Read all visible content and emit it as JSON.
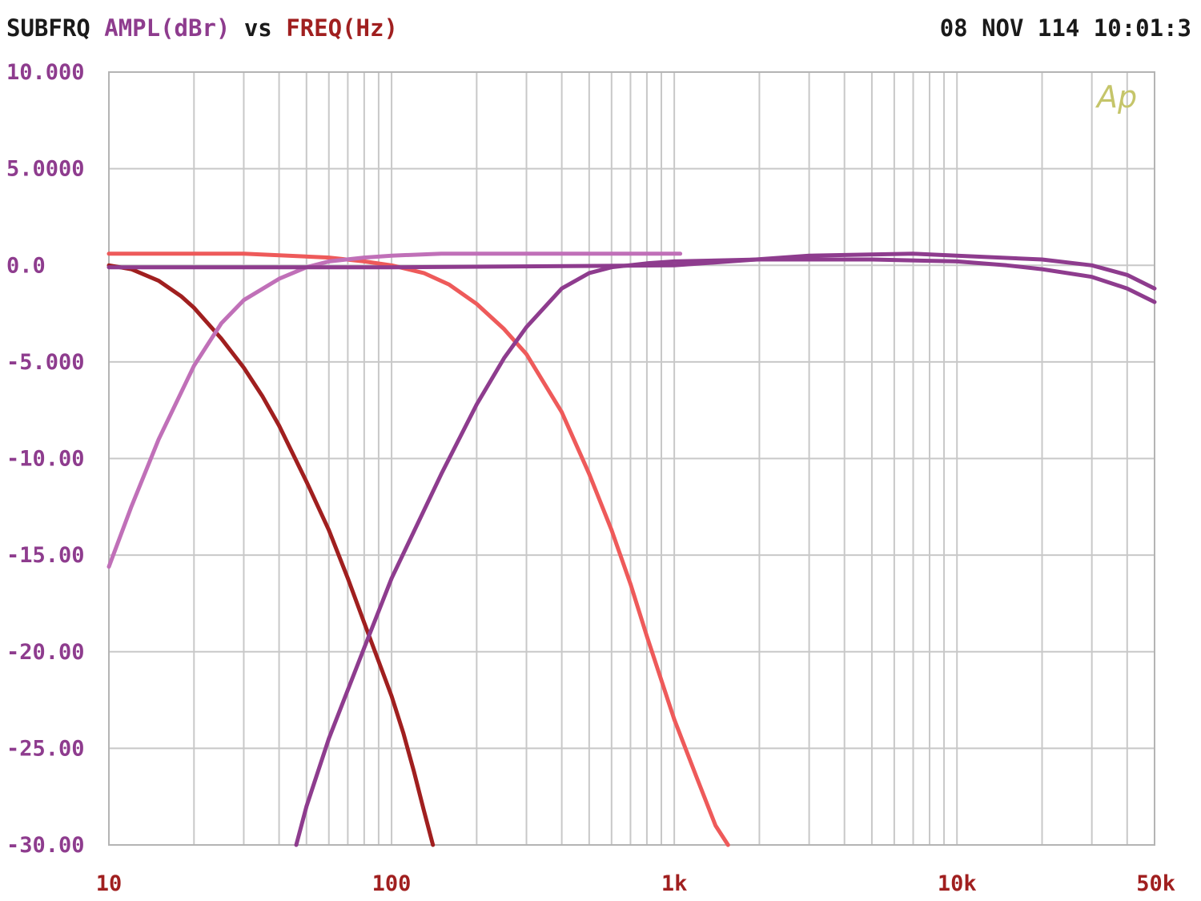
{
  "header": {
    "prefix": "SUBFRQ",
    "y_quantity": "AMPL(dBr)",
    "vs": "vs",
    "x_quantity": "FREQ(Hz)",
    "datetime": "08 NOV 114 10:01:3"
  },
  "logo_text": "Ap",
  "chart_data": {
    "type": "line",
    "title": "",
    "xlabel": "FREQ(Hz)",
    "ylabel": "AMPL(dBr)",
    "x_scale": "log",
    "xlim": [
      10,
      50000
    ],
    "ylim": [
      -30,
      10
    ],
    "grid": true,
    "y_ticks": [
      10,
      5,
      0,
      -5,
      -10,
      -15,
      -20,
      -25,
      -30
    ],
    "y_tick_labels": [
      "10.000",
      "5.0000",
      "0.0",
      "-5.000",
      "-10.00",
      "-15.00",
      "-20.00",
      "-25.00",
      "-30.00"
    ],
    "x_ticks": [
      10,
      100,
      1000,
      10000,
      50000
    ],
    "x_tick_labels": [
      "10",
      "100",
      "1k",
      "10k",
      "50k"
    ],
    "colors": {
      "grid": "#c8c8c8",
      "frame": "#b4b4b4",
      "y_label": "#8e3c8e",
      "x_label": "#a01f1f",
      "logo": "#c5c56a"
    },
    "series": [
      {
        "color": "#a01f1f",
        "points": [
          [
            10,
            0
          ],
          [
            12,
            -0.2
          ],
          [
            15,
            -0.8
          ],
          [
            18,
            -1.6
          ],
          [
            20,
            -2.2
          ],
          [
            25,
            -3.8
          ],
          [
            30,
            -5.3
          ],
          [
            35,
            -6.8
          ],
          [
            40,
            -8.3
          ],
          [
            50,
            -11.2
          ],
          [
            60,
            -13.7
          ],
          [
            70,
            -16.2
          ],
          [
            80,
            -18.5
          ],
          [
            90,
            -20.5
          ],
          [
            100,
            -22.3
          ],
          [
            110,
            -24.2
          ],
          [
            120,
            -26.2
          ],
          [
            130,
            -28.2
          ],
          [
            140,
            -30
          ]
        ]
      },
      {
        "color": "#ee5a5a",
        "points": [
          [
            10,
            0.6
          ],
          [
            30,
            0.6
          ],
          [
            60,
            0.4
          ],
          [
            80,
            0.2
          ],
          [
            100,
            0
          ],
          [
            130,
            -0.4
          ],
          [
            160,
            -1.0
          ],
          [
            200,
            -2.0
          ],
          [
            250,
            -3.3
          ],
          [
            300,
            -4.6
          ],
          [
            400,
            -7.6
          ],
          [
            500,
            -10.8
          ],
          [
            600,
            -13.7
          ],
          [
            700,
            -16.5
          ],
          [
            800,
            -19.2
          ],
          [
            1000,
            -23.5
          ],
          [
            1200,
            -26.5
          ],
          [
            1400,
            -29.0
          ],
          [
            1550,
            -30
          ]
        ]
      },
      {
        "color": "#c070b8",
        "points": [
          [
            10,
            -15.6
          ],
          [
            12,
            -12.5
          ],
          [
            15,
            -9.0
          ],
          [
            20,
            -5.2
          ],
          [
            25,
            -3.0
          ],
          [
            30,
            -1.8
          ],
          [
            40,
            -0.7
          ],
          [
            50,
            -0.1
          ],
          [
            60,
            0.2
          ],
          [
            80,
            0.4
          ],
          [
            100,
            0.5
          ],
          [
            150,
            0.6
          ],
          [
            200,
            0.6
          ],
          [
            500,
            0.6
          ],
          [
            1000,
            0.6
          ],
          [
            1050,
            0.6
          ]
        ]
      },
      {
        "color": "#8e3c8e",
        "points": [
          [
            46,
            -30
          ],
          [
            50,
            -28.0
          ],
          [
            60,
            -24.5
          ],
          [
            80,
            -19.8
          ],
          [
            100,
            -16.2
          ],
          [
            150,
            -10.8
          ],
          [
            200,
            -7.2
          ],
          [
            250,
            -4.8
          ],
          [
            300,
            -3.2
          ],
          [
            400,
            -1.2
          ],
          [
            500,
            -0.4
          ],
          [
            600,
            -0.1
          ],
          [
            800,
            0.1
          ],
          [
            1000,
            0.2
          ],
          [
            2000,
            0.3
          ],
          [
            5000,
            0.3
          ],
          [
            10000,
            0.2
          ],
          [
            15000,
            0
          ],
          [
            20000,
            -0.2
          ],
          [
            30000,
            -0.6
          ],
          [
            40000,
            -1.2
          ],
          [
            50000,
            -1.9
          ]
        ]
      },
      {
        "color": "#8e3c8e",
        "points": [
          [
            10,
            -0.1
          ],
          [
            100,
            -0.1
          ],
          [
            1000,
            0
          ],
          [
            3000,
            0.5
          ],
          [
            7000,
            0.6
          ],
          [
            10000,
            0.5
          ],
          [
            20000,
            0.3
          ],
          [
            30000,
            0
          ],
          [
            40000,
            -0.5
          ],
          [
            50000,
            -1.2
          ]
        ]
      }
    ]
  }
}
